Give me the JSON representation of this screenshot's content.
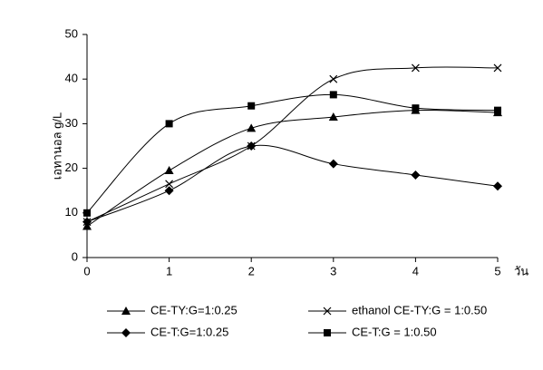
{
  "chart_data": {
    "type": "line",
    "y_label": "เอทานอล g/L",
    "x_label": "วัน",
    "x": [
      0,
      1,
      2,
      3,
      4,
      5
    ],
    "xlim": [
      0,
      5
    ],
    "xticks": [
      0,
      1,
      2,
      3,
      4,
      5
    ],
    "ylim": [
      0,
      50
    ],
    "yticks": [
      0,
      10,
      20,
      30,
      40,
      50
    ],
    "series": [
      {
        "name": "CE-TY:G=1:0.25",
        "color": "#000000",
        "marker": "triangle",
        "values": [
          7,
          19.5,
          29,
          31.5,
          33,
          32.5
        ]
      },
      {
        "name": "ethanol CE-TY:G = 1:0.50",
        "color": "#000000",
        "marker": "x",
        "values": [
          8,
          16.5,
          25,
          40,
          42.5,
          42.5
        ]
      },
      {
        "name": "CE-T:G=1:0.25",
        "color": "#000000",
        "marker": "diamond",
        "values": [
          8,
          15,
          25,
          21,
          18.5,
          16
        ]
      },
      {
        "name": "CE-T:G = 1:0.50",
        "color": "#000000",
        "marker": "square",
        "values": [
          10,
          30,
          34,
          36.5,
          33.5,
          33
        ]
      }
    ]
  }
}
